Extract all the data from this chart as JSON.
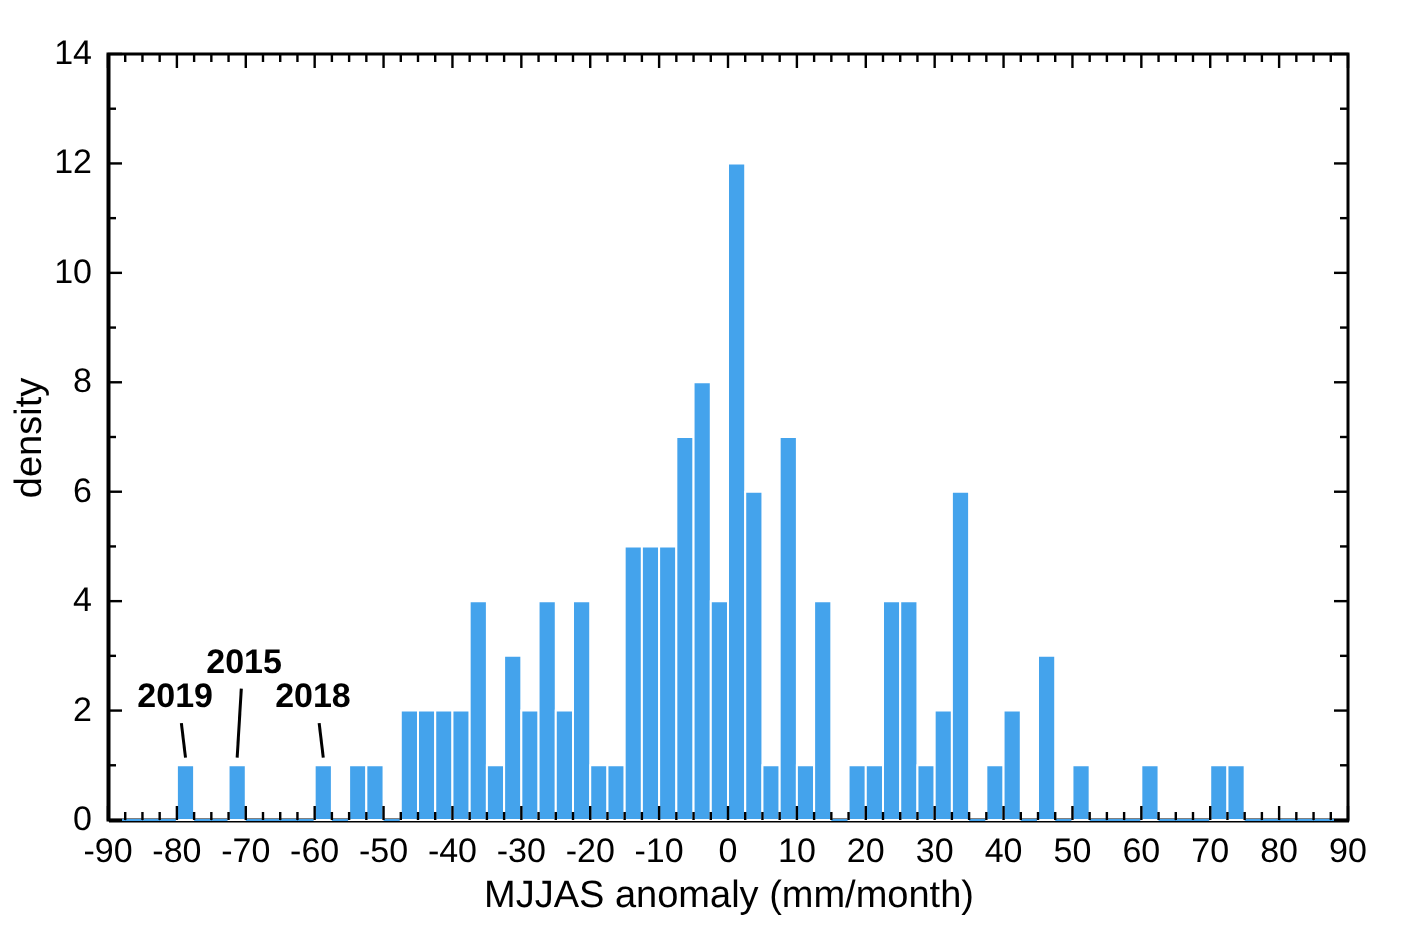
{
  "chart_data": {
    "type": "histogram",
    "xlabel": "MJJAS anomaly (mm/month)",
    "ylabel": "density",
    "color": "#44a3ec",
    "bins": [
      -90,
      -87.5,
      -85,
      -82.5,
      -80,
      -77.5,
      -75,
      -72.5,
      -70,
      -67.5,
      -65,
      -62.5,
      -60,
      -57.5,
      -55,
      -52.5,
      -50,
      -47.5,
      -45,
      -42.5,
      -40,
      -37.5,
      -35,
      -32.5,
      -30,
      -27.5,
      -25,
      -22.5,
      -20,
      -17.5,
      -15,
      -12.5,
      -10,
      -7.5,
      -5,
      -2.5,
      0,
      2.5,
      5,
      7.5,
      10,
      12.5,
      15,
      17.5,
      20,
      22.5,
      25,
      27.5,
      30,
      32.5,
      35,
      37.5,
      40,
      42.5,
      45,
      47.5,
      50,
      52.5,
      55,
      57.5,
      60,
      62.5,
      65,
      67.5,
      70,
      72.5,
      75,
      77.5,
      80,
      82.5,
      85,
      87.5,
      90
    ],
    "values": [
      0,
      0,
      0,
      0,
      1,
      0,
      0,
      1,
      0,
      0,
      0,
      0,
      1,
      0,
      1,
      1,
      0,
      2,
      2,
      2,
      2,
      4,
      1,
      3,
      2,
      4,
      2,
      4,
      1,
      1,
      5,
      5,
      5,
      7,
      8,
      4,
      12,
      6,
      1,
      7,
      1,
      4,
      0,
      1,
      1,
      4,
      4,
      1,
      2,
      6,
      0,
      1,
      2,
      0,
      3,
      0,
      1,
      0,
      0,
      0,
      1,
      0,
      0,
      0,
      1,
      1,
      0,
      0,
      0,
      0,
      0,
      0
    ],
    "xlim": [
      -90,
      90
    ],
    "xticks": [
      -90,
      {
        "value": -87.5,
        "label": null
      },
      {
        "value": -85,
        "label": null
      },
      {
        "value": -82.5,
        "label": null
      },
      -80,
      {
        "value": -77.5,
        "label": null
      },
      {
        "value": -75,
        "label": null
      },
      {
        "value": -72.5,
        "label": null
      },
      -70,
      {
        "value": -67.5,
        "label": null
      },
      {
        "value": -65,
        "label": null
      },
      {
        "value": -62.5,
        "label": null
      },
      -60,
      {
        "value": -57.5,
        "label": null
      },
      {
        "value": -55,
        "label": null
      },
      {
        "value": -52.5,
        "label": null
      },
      -50,
      {
        "value": -47.5,
        "label": null
      },
      {
        "value": -45,
        "label": null
      },
      {
        "value": -42.5,
        "label": null
      },
      -40,
      {
        "value": -37.5,
        "label": null
      },
      {
        "value": -35,
        "label": null
      },
      {
        "value": -32.5,
        "label": null
      },
      -30,
      {
        "value": -27.5,
        "label": null
      },
      {
        "value": -25,
        "label": null
      },
      {
        "value": -22.5,
        "label": null
      },
      -20,
      {
        "value": -17.5,
        "label": null
      },
      {
        "value": -15,
        "label": null
      },
      {
        "value": -12.5,
        "label": null
      },
      -10,
      {
        "value": -7.5,
        "label": null
      },
      {
        "value": -5,
        "label": null
      },
      {
        "value": -2.5,
        "label": null
      },
      0,
      {
        "value": 2.5,
        "label": null
      },
      {
        "value": 5,
        "label": null
      },
      {
        "value": 7.5,
        "label": null
      },
      10,
      {
        "value": 12.5,
        "label": null
      },
      {
        "value": 15,
        "label": null
      },
      {
        "value": 17.5,
        "label": null
      },
      20,
      {
        "value": 22.5,
        "label": null
      },
      {
        "value": 25,
        "label": null
      },
      {
        "value": 27.5,
        "label": null
      },
      30,
      {
        "value": 32.5,
        "label": null
      },
      {
        "value": 35,
        "label": null
      },
      {
        "value": 37.5,
        "label": null
      },
      40,
      {
        "value": 42.5,
        "label": null
      },
      {
        "value": 45,
        "label": null
      },
      {
        "value": 47.5,
        "label": null
      },
      50,
      {
        "value": 52.5,
        "label": null
      },
      {
        "value": 55,
        "label": null
      },
      {
        "value": 57.5,
        "label": null
      },
      60,
      {
        "value": 62.5,
        "label": null
      },
      {
        "value": 65,
        "label": null
      },
      {
        "value": 67.5,
        "label": null
      },
      70,
      {
        "value": 72.5,
        "label": null
      },
      {
        "value": 75,
        "label": null
      },
      {
        "value": 77.5,
        "label": null
      },
      80,
      {
        "value": 82.5,
        "label": null
      },
      {
        "value": 85,
        "label": null
      },
      {
        "value": 87.5,
        "label": null
      },
      90
    ],
    "ylim": [
      0,
      14
    ],
    "yticks": [
      0,
      {
        "value": 1,
        "label": null
      },
      2,
      {
        "value": 3,
        "label": null
      },
      4,
      {
        "value": 5,
        "label": null
      },
      6,
      {
        "value": 7,
        "label": null
      },
      8,
      {
        "value": 9,
        "label": null
      },
      10,
      {
        "value": 11,
        "label": null
      },
      12,
      {
        "value": 13,
        "label": null
      },
      14
    ],
    "grid": false,
    "annotations": [
      {
        "text": "2019",
        "x": -78.75,
        "y": 1
      },
      {
        "text": "2015",
        "x": -71.25,
        "y": 1
      },
      {
        "text": "2018",
        "x": -58.75,
        "y": 1
      }
    ]
  }
}
